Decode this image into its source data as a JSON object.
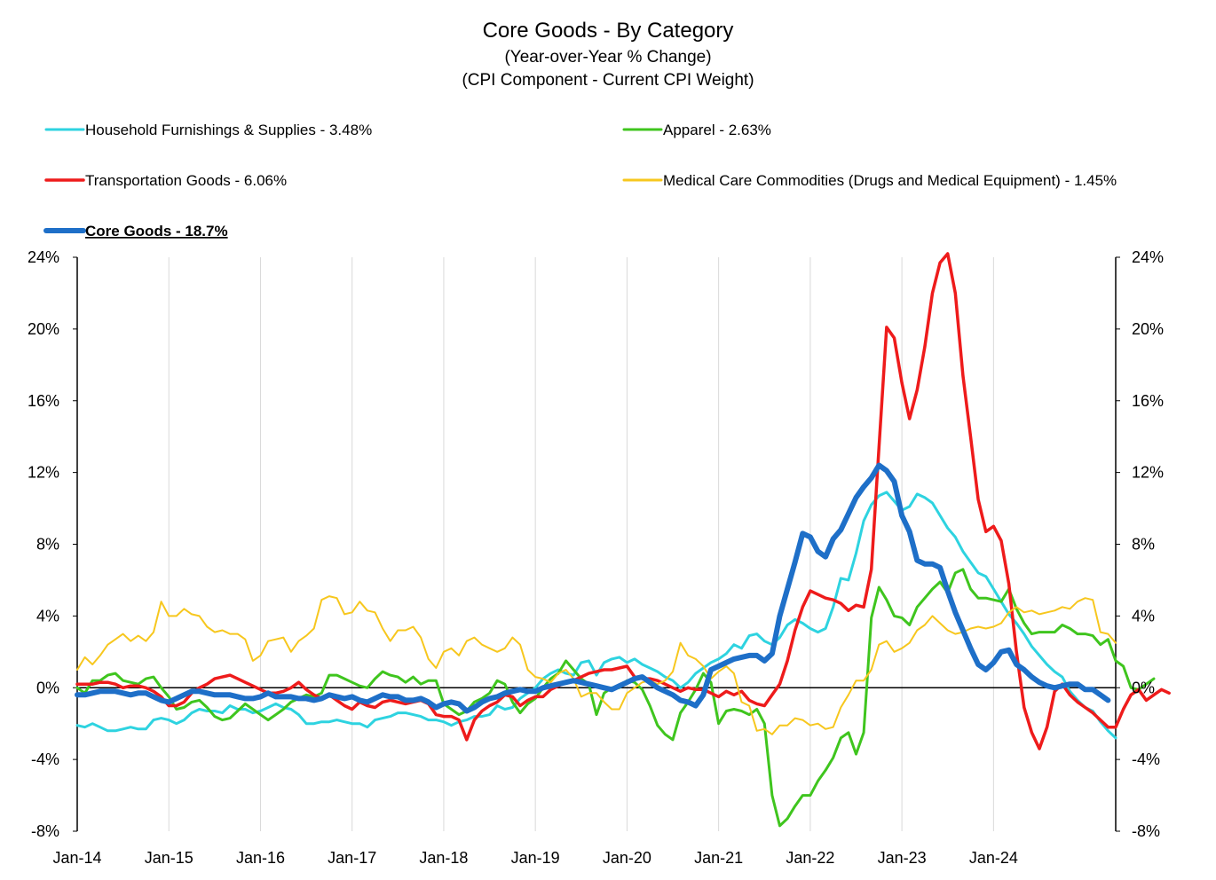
{
  "chart_data": {
    "type": "line",
    "title": "Core Goods - By Category",
    "subtitle_lines": [
      "(Year-over-Year % Change)",
      "(CPI Component - Current CPI Weight)"
    ],
    "xlabel": "",
    "ylabel": "",
    "x_start": "2014-01",
    "x_ticks": [
      "Jan-14",
      "Jan-15",
      "Jan-16",
      "Jan-17",
      "Jan-18",
      "Jan-19",
      "Jan-20",
      "Jan-21",
      "Jan-22",
      "Jan-23",
      "Jan-24"
    ],
    "x_range_months": [
      0,
      136
    ],
    "ylim": [
      -8,
      24
    ],
    "y_ticks": [
      -8,
      -4,
      0,
      4,
      8,
      12,
      16,
      20,
      24
    ],
    "y_tick_labels": [
      "-8%",
      "-4%",
      "0%",
      "4%",
      "8%",
      "12%",
      "16%",
      "20%",
      "24%"
    ],
    "secondary_y_axis": true,
    "grid": "vertical",
    "legend_position": "top",
    "series": [
      {
        "name": "Household Furnishings & Supplies - 3.48%",
        "color": "#2ed3e0",
        "width": 3,
        "legend_slot": 0,
        "values": [
          -2.1,
          -2.2,
          -2.0,
          -2.2,
          -2.4,
          -2.4,
          -2.3,
          -2.2,
          -2.3,
          -2.3,
          -1.8,
          -1.7,
          -1.8,
          -2.0,
          -1.8,
          -1.4,
          -1.2,
          -1.3,
          -1.3,
          -1.4,
          -1.0,
          -1.2,
          -1.2,
          -1.4,
          -1.3,
          -1.1,
          -0.9,
          -1.1,
          -1.2,
          -1.5,
          -2.0,
          -2.0,
          -1.9,
          -1.9,
          -1.8,
          -1.9,
          -2.0,
          -2.0,
          -2.2,
          -1.8,
          -1.7,
          -1.6,
          -1.4,
          -1.4,
          -1.5,
          -1.6,
          -1.8,
          -1.8,
          -1.9,
          -2.1,
          -1.9,
          -1.8,
          -1.6,
          -1.6,
          -1.5,
          -1.0,
          -1.2,
          -1.1,
          -0.6,
          -0.3,
          0.0,
          0.5,
          0.8,
          1.0,
          0.8,
          0.7,
          1.4,
          1.5,
          0.7,
          1.4,
          1.6,
          1.7,
          1.4,
          1.6,
          1.3,
          1.1,
          0.9,
          0.6,
          0.4,
          0.0,
          0.3,
          0.8,
          1.1,
          1.4,
          1.6,
          1.9,
          2.4,
          2.2,
          2.9,
          3.0,
          2.6,
          2.4,
          2.8,
          3.5,
          3.8,
          3.6,
          3.3,
          3.1,
          3.3,
          4.5,
          6.1,
          6.0,
          7.5,
          9.3,
          10.2,
          10.7,
          10.9,
          10.4,
          9.9,
          10.1,
          10.8,
          10.6,
          10.3,
          9.6,
          8.9,
          8.4,
          7.6,
          7.0,
          6.4,
          6.2,
          5.5,
          4.8,
          4.1,
          3.6,
          3.0,
          2.3,
          1.8,
          1.3,
          0.9,
          0.6,
          -0.2,
          -0.7,
          -1.1,
          -1.3,
          -1.9,
          -2.4,
          -2.8
        ]
      },
      {
        "name": "Apparel - 2.63%",
        "color": "#3fc51e",
        "width": 3,
        "legend_slot": 1,
        "values": [
          0.0,
          -0.3,
          0.4,
          0.4,
          0.7,
          0.8,
          0.4,
          0.3,
          0.2,
          0.5,
          0.6,
          0.0,
          -0.5,
          -1.2,
          -1.1,
          -0.8,
          -0.7,
          -1.1,
          -1.6,
          -1.8,
          -1.7,
          -1.3,
          -0.9,
          -1.2,
          -1.5,
          -1.8,
          -1.5,
          -1.2,
          -0.8,
          -0.6,
          -0.4,
          -0.5,
          -0.3,
          0.7,
          0.7,
          0.5,
          0.3,
          0.1,
          0.0,
          0.5,
          0.9,
          0.7,
          0.6,
          0.3,
          0.6,
          0.2,
          0.4,
          0.4,
          -0.9,
          -1.2,
          -1.5,
          -1.3,
          -0.8,
          -0.6,
          -0.3,
          0.4,
          0.2,
          -0.8,
          -1.4,
          -0.9,
          -0.6,
          0.0,
          0.5,
          0.8,
          1.5,
          1.0,
          0.5,
          0.2,
          -1.5,
          -0.3,
          0.0,
          0.0,
          0.4,
          0.3,
          -0.1,
          -1.0,
          -2.1,
          -2.6,
          -2.9,
          -1.4,
          -0.8,
          -0.1,
          0.8,
          0.3,
          -2.0,
          -1.3,
          -1.2,
          -1.3,
          -1.5,
          -1.2,
          -2.0,
          -6.0,
          -7.7,
          -7.3,
          -6.6,
          -6.0,
          -6.0,
          -5.2,
          -4.6,
          -3.9,
          -2.8,
          -2.5,
          -3.7,
          -2.5,
          3.9,
          5.6,
          4.9,
          4.0,
          3.9,
          3.5,
          4.5,
          5.0,
          5.5,
          5.9,
          5.3,
          6.4,
          6.6,
          5.5,
          5.0,
          5.0,
          4.9,
          4.8,
          5.5,
          4.4,
          3.6,
          3.0,
          3.1,
          3.1,
          3.1,
          3.5,
          3.3,
          3.0,
          3.0,
          2.9,
          2.4,
          2.7,
          1.5,
          1.2,
          0.0,
          -0.1,
          0.2,
          0.5
        ]
      },
      {
        "name": "Transportation Goods - 6.06%",
        "color": "#ee1b1b",
        "width": 3.5,
        "legend_slot": 2,
        "values": [
          0.2,
          0.2,
          0.2,
          0.3,
          0.3,
          0.2,
          0.0,
          0.1,
          0.1,
          0.0,
          -0.2,
          -0.5,
          -1.0,
          -1.0,
          -0.8,
          -0.3,
          0.0,
          0.2,
          0.5,
          0.6,
          0.7,
          0.5,
          0.3,
          0.1,
          -0.1,
          -0.3,
          -0.3,
          -0.2,
          0.0,
          0.3,
          -0.1,
          -0.4,
          -0.6,
          -0.4,
          -0.7,
          -1.0,
          -1.2,
          -0.8,
          -1.0,
          -1.1,
          -0.8,
          -0.7,
          -0.8,
          -0.9,
          -0.8,
          -0.7,
          -0.9,
          -1.5,
          -1.6,
          -1.6,
          -1.8,
          -2.9,
          -1.8,
          -1.3,
          -1.0,
          -0.8,
          -0.4,
          -0.5,
          -1.0,
          -0.7,
          -0.5,
          -0.5,
          -0.1,
          0.1,
          0.3,
          0.4,
          0.6,
          0.8,
          0.9,
          1.0,
          1.0,
          1.1,
          1.2,
          0.6,
          0.5,
          0.5,
          0.4,
          0.2,
          0.0,
          -0.2,
          0.0,
          -0.1,
          -0.1,
          -0.3,
          -0.5,
          -0.2,
          -0.4,
          -0.2,
          -0.7,
          -0.9,
          -1.0,
          -0.4,
          0.2,
          1.5,
          3.2,
          4.5,
          5.4,
          5.2,
          5.0,
          4.9,
          4.7,
          4.3,
          4.6,
          4.5,
          6.6,
          13.4,
          20.1,
          19.5,
          17.0,
          15.0,
          16.6,
          19.0,
          22.0,
          23.7,
          24.2,
          22.0,
          17.4,
          14.0,
          10.5,
          8.7,
          9.0,
          8.2,
          5.8,
          2.0,
          -1.1,
          -2.5,
          -3.4,
          -2.2,
          -0.2,
          0.2,
          -0.4,
          -0.8,
          -1.1,
          -1.4,
          -1.8,
          -2.2,
          -2.2,
          -1.2,
          -0.4,
          -0.1,
          -0.7,
          -0.4,
          -0.1,
          -0.3
        ]
      },
      {
        "name": "Medical Care Commodities (Drugs and Medical Equipment) - 1.45%",
        "color": "#f7c71e",
        "width": 2,
        "legend_slot": 3,
        "values": [
          1.0,
          1.7,
          1.3,
          1.8,
          2.4,
          2.7,
          3.0,
          2.6,
          2.9,
          2.6,
          3.1,
          4.8,
          4.0,
          4.0,
          4.4,
          4.1,
          4.0,
          3.4,
          3.1,
          3.2,
          3.0,
          3.0,
          2.7,
          1.5,
          1.8,
          2.6,
          2.7,
          2.8,
          2.0,
          2.6,
          2.9,
          3.3,
          4.9,
          5.1,
          5.0,
          4.1,
          4.2,
          4.8,
          4.3,
          4.2,
          3.3,
          2.6,
          3.2,
          3.2,
          3.4,
          2.8,
          1.6,
          1.1,
          2.0,
          2.2,
          1.8,
          2.6,
          2.8,
          2.4,
          2.2,
          2.0,
          2.2,
          2.8,
          2.4,
          1.0,
          0.6,
          0.5,
          0.3,
          0.8,
          1.0,
          0.5,
          -0.5,
          -0.3,
          -0.3,
          -0.8,
          -1.2,
          -1.2,
          -0.3,
          0.0,
          0.3,
          0.4,
          0.2,
          0.4,
          0.9,
          2.5,
          1.8,
          1.6,
          1.2,
          0.5,
          0.9,
          1.2,
          0.8,
          -0.8,
          -1.0,
          -2.4,
          -2.3,
          -2.6,
          -2.1,
          -2.1,
          -1.7,
          -1.8,
          -2.1,
          -2.0,
          -2.3,
          -2.2,
          -1.1,
          -0.4,
          0.4,
          0.4,
          1.0,
          2.4,
          2.6,
          2.0,
          2.2,
          2.5,
          3.2,
          3.5,
          4.0,
          3.6,
          3.2,
          3.0,
          3.1,
          3.3,
          3.4,
          3.3,
          3.4,
          3.6,
          4.2,
          4.5,
          4.2,
          4.3,
          4.1,
          4.2,
          4.3,
          4.5,
          4.4,
          4.8,
          5.0,
          4.9,
          3.1,
          3.0,
          2.5
        ]
      },
      {
        "name": "Core Goods - 18.7%",
        "color": "#1e6fc8",
        "width": 6,
        "legend_slot": 4,
        "legend_bold": true,
        "legend_underline": true,
        "values": [
          -0.4,
          -0.4,
          -0.3,
          -0.2,
          -0.2,
          -0.2,
          -0.3,
          -0.4,
          -0.3,
          -0.3,
          -0.5,
          -0.7,
          -0.8,
          -0.6,
          -0.4,
          -0.2,
          -0.2,
          -0.3,
          -0.4,
          -0.4,
          -0.4,
          -0.5,
          -0.6,
          -0.6,
          -0.5,
          -0.3,
          -0.5,
          -0.5,
          -0.5,
          -0.6,
          -0.6,
          -0.7,
          -0.6,
          -0.4,
          -0.5,
          -0.6,
          -0.5,
          -0.7,
          -0.8,
          -0.6,
          -0.4,
          -0.5,
          -0.5,
          -0.7,
          -0.7,
          -0.6,
          -0.8,
          -1.1,
          -0.9,
          -0.8,
          -0.9,
          -1.3,
          -1.1,
          -0.8,
          -0.6,
          -0.5,
          -0.3,
          -0.2,
          -0.1,
          -0.2,
          -0.2,
          0.0,
          0.1,
          0.2,
          0.3,
          0.4,
          0.3,
          0.2,
          0.1,
          0.0,
          -0.1,
          0.1,
          0.3,
          0.5,
          0.6,
          0.3,
          0.0,
          -0.2,
          -0.4,
          -0.7,
          -0.8,
          -1.0,
          -0.4,
          1.0,
          1.2,
          1.4,
          1.6,
          1.7,
          1.8,
          1.8,
          1.5,
          1.9,
          4.0,
          5.5,
          7.0,
          8.6,
          8.4,
          7.6,
          7.3,
          8.3,
          8.8,
          9.7,
          10.6,
          11.2,
          11.7,
          12.4,
          12.1,
          11.5,
          9.6,
          8.7,
          7.1,
          6.9,
          6.9,
          6.7,
          5.4,
          4.2,
          3.2,
          2.2,
          1.3,
          1.0,
          1.4,
          2.0,
          2.1,
          1.3,
          1.0,
          0.6,
          0.3,
          0.1,
          0.0,
          0.1,
          0.2,
          0.2,
          -0.1,
          -0.1,
          -0.4,
          -0.7
        ]
      }
    ]
  }
}
